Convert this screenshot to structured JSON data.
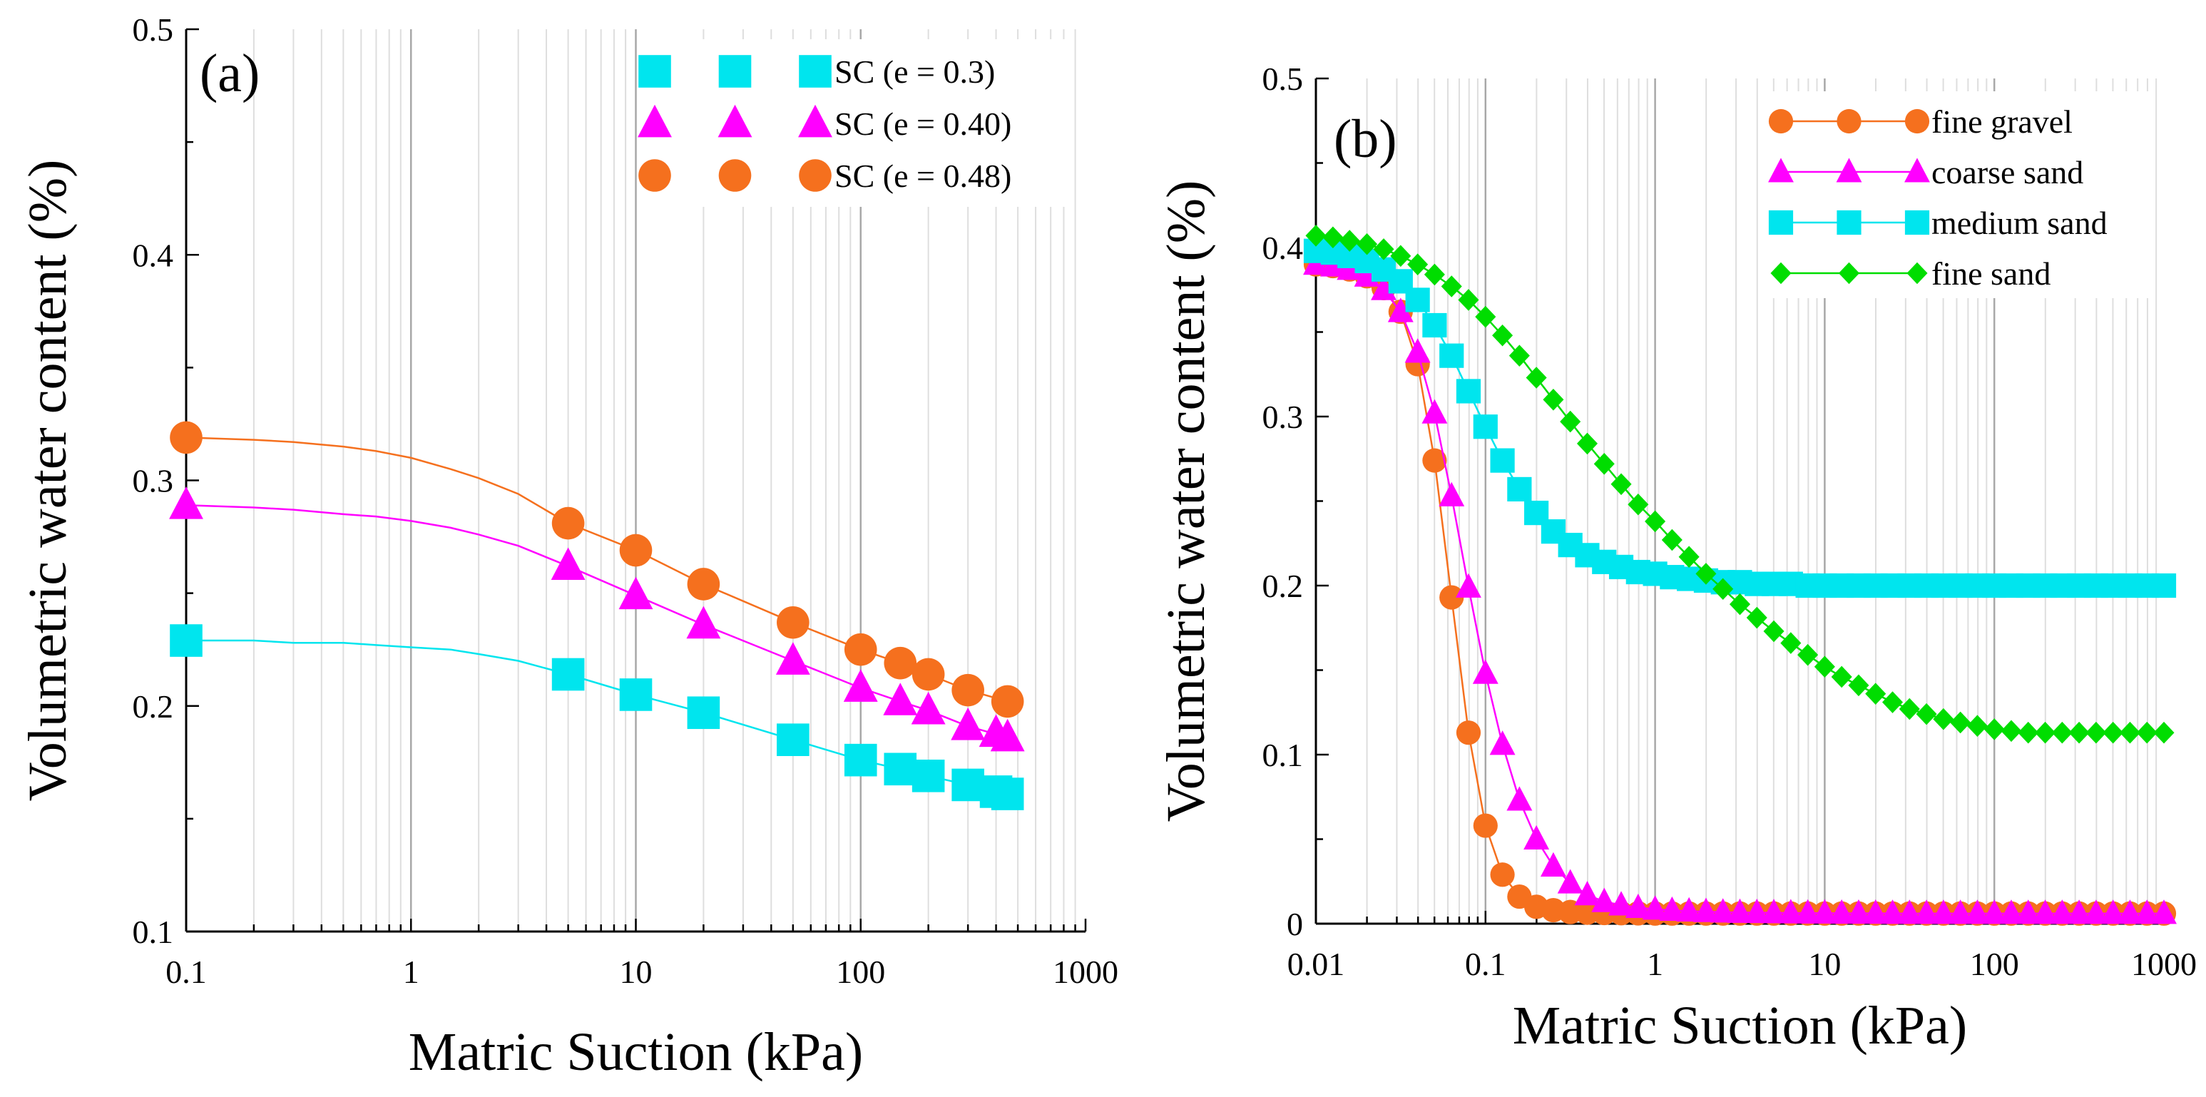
{
  "chart_data": [
    {
      "type": "line",
      "panel_label": "(a)",
      "xlabel": "Matric Suction (kPa)",
      "ylabel": "Volumetric water content (%)",
      "xscale": "log",
      "xlim": [
        0.1,
        1000
      ],
      "ylim": [
        0.1,
        0.5
      ],
      "xticks": [
        0.1,
        1,
        10,
        100,
        1000
      ],
      "xtick_labels": [
        "0.1",
        "1",
        "10",
        "100",
        "1000"
      ],
      "yticks": [
        0.1,
        0.2,
        0.3,
        0.4,
        0.5
      ],
      "ytick_labels": [
        "0.1",
        "0.2",
        "0.3",
        "0.4",
        "0.5"
      ],
      "legend_position": "top-right",
      "grid": "vertical log grid",
      "series": [
        {
          "name": "SC (e = 0.3)",
          "color": "#00e5ee",
          "marker": "square",
          "x": [
            0.1,
            5,
            10,
            20,
            50,
            100,
            150,
            200,
            300,
            400,
            450
          ],
          "y": [
            0.229,
            0.214,
            0.205,
            0.197,
            0.185,
            0.176,
            0.172,
            0.169,
            0.165,
            0.162,
            0.161
          ]
        },
        {
          "name": "SC (e = 0.40)",
          "color": "#ff00ff",
          "marker": "triangle",
          "x": [
            0.1,
            5,
            10,
            20,
            50,
            100,
            150,
            200,
            300,
            400,
            450
          ],
          "y": [
            0.289,
            0.262,
            0.249,
            0.236,
            0.22,
            0.208,
            0.202,
            0.198,
            0.191,
            0.188,
            0.186
          ]
        },
        {
          "name": "SC (e = 0.48)",
          "color": "#f5701e",
          "marker": "circle",
          "x": [
            0.1,
            5,
            10,
            20,
            50,
            100,
            150,
            200,
            300,
            450
          ],
          "y": [
            0.319,
            0.281,
            0.269,
            0.254,
            0.237,
            0.225,
            0.219,
            0.214,
            0.207,
            0.202
          ]
        }
      ],
      "curve_x": [
        0.1,
        0.2,
        0.3,
        0.5,
        0.7,
        1,
        1.5,
        2,
        3,
        5,
        10,
        20,
        50,
        100,
        150,
        200,
        300,
        450
      ],
      "curve_y": [
        [
          0.229,
          0.229,
          0.228,
          0.228,
          0.227,
          0.226,
          0.225,
          0.223,
          0.22,
          0.214,
          0.205,
          0.197,
          0.185,
          0.176,
          0.172,
          0.169,
          0.165,
          0.161
        ],
        [
          0.289,
          0.288,
          0.287,
          0.285,
          0.284,
          0.282,
          0.279,
          0.276,
          0.271,
          0.262,
          0.249,
          0.236,
          0.22,
          0.208,
          0.202,
          0.198,
          0.191,
          0.186
        ],
        [
          0.319,
          0.318,
          0.317,
          0.315,
          0.313,
          0.31,
          0.305,
          0.301,
          0.294,
          0.281,
          0.269,
          0.254,
          0.237,
          0.225,
          0.219,
          0.214,
          0.207,
          0.202
        ]
      ]
    },
    {
      "type": "line",
      "panel_label": "(b)",
      "xlabel": "Matric Suction (kPa)",
      "ylabel": "Volumetric water content (%)",
      "xscale": "log",
      "xlim": [
        0.01,
        1000
      ],
      "ylim": [
        0,
        0.5
      ],
      "xticks": [
        0.01,
        0.1,
        1,
        10,
        100,
        1000
      ],
      "xtick_labels": [
        "0.01",
        "0.1",
        "1",
        "10",
        "100",
        "1000"
      ],
      "yticks": [
        0,
        0.1,
        0.2,
        0.3,
        0.4,
        0.5
      ],
      "ytick_labels": [
        "0",
        "0.1",
        "0.2",
        "0.3",
        "0.4",
        "0.5"
      ],
      "legend_position": "top-right",
      "grid": "vertical log grid",
      "series": [
        {
          "name": "fine gravel",
          "color": "#f5701e",
          "marker": "circle",
          "x": [
            0.01,
            0.0126,
            0.0158,
            0.02,
            0.0251,
            0.0316,
            0.0398,
            0.0501,
            0.0631,
            0.0794,
            0.1,
            0.1259,
            0.1585,
            0.1995,
            0.2512,
            0.3162,
            0.3981,
            0.5012,
            0.631,
            0.7943,
            1,
            1.2589,
            1.5849,
            1.9953,
            2.5119,
            3.1623,
            3.9811,
            5.0119,
            6.3096,
            7.9433,
            10,
            12.589,
            15.849,
            19.953,
            25.119,
            31.623,
            39.811,
            50.119,
            63.096,
            79.433,
            100,
            125.89,
            158.49,
            199.53,
            251.19,
            316.23,
            398.11,
            501.19,
            630.96,
            794.33,
            1000
          ],
          "y": [
            0.39,
            0.389,
            0.387,
            0.383,
            0.376,
            0.362,
            0.331,
            0.274,
            0.193,
            0.113,
            0.058,
            0.029,
            0.016,
            0.01,
            0.008,
            0.0069,
            0.0065,
            0.0063,
            0.0062,
            0.0061,
            0.006,
            0.006,
            0.006,
            0.006,
            0.006,
            0.006,
            0.006,
            0.006,
            0.006,
            0.006,
            0.006,
            0.006,
            0.006,
            0.006,
            0.006,
            0.006,
            0.006,
            0.006,
            0.006,
            0.006,
            0.006,
            0.006,
            0.006,
            0.006,
            0.006,
            0.006,
            0.006,
            0.006,
            0.006,
            0.006,
            0.006
          ]
        },
        {
          "name": "coarse sand",
          "color": "#ff00ff",
          "marker": "triangle",
          "x": [
            0.01,
            0.0126,
            0.0158,
            0.02,
            0.0251,
            0.0316,
            0.0398,
            0.0501,
            0.0631,
            0.0794,
            0.1,
            0.1259,
            0.1585,
            0.1995,
            0.2512,
            0.3162,
            0.3981,
            0.5012,
            0.631,
            0.7943,
            1,
            1.2589,
            1.5849,
            1.9953,
            2.5119,
            3.1623,
            3.9811,
            5.0119,
            6.3096,
            7.9433,
            10,
            12.589,
            15.849,
            19.953,
            25.119,
            31.623,
            39.811,
            50.119,
            63.096,
            79.433,
            100,
            125.89,
            158.49,
            199.53,
            251.19,
            316.23,
            398.11,
            501.19,
            630.96,
            794.33,
            1000
          ],
          "y": [
            0.39,
            0.389,
            0.387,
            0.383,
            0.375,
            0.362,
            0.338,
            0.302,
            0.253,
            0.199,
            0.148,
            0.106,
            0.073,
            0.05,
            0.034,
            0.024,
            0.017,
            0.013,
            0.011,
            0.0095,
            0.0085,
            0.0078,
            0.0074,
            0.0071,
            0.0068,
            0.0066,
            0.0065,
            0.0064,
            0.0063,
            0.0062,
            0.0062,
            0.0061,
            0.0061,
            0.0061,
            0.006,
            0.006,
            0.006,
            0.006,
            0.006,
            0.006,
            0.006,
            0.006,
            0.006,
            0.006,
            0.006,
            0.006,
            0.006,
            0.006,
            0.006,
            0.006,
            0.006
          ]
        },
        {
          "name": "medium sand",
          "color": "#00e5ee",
          "marker": "square",
          "x": [
            0.01,
            0.0126,
            0.0158,
            0.02,
            0.0251,
            0.0316,
            0.0398,
            0.0501,
            0.0631,
            0.0794,
            0.1,
            0.1259,
            0.1585,
            0.1995,
            0.2512,
            0.3162,
            0.3981,
            0.5012,
            0.631,
            0.7943,
            1,
            1.2589,
            1.5849,
            1.9953,
            2.5119,
            3.1623,
            3.9811,
            5.0119,
            6.3096,
            7.9433,
            10,
            12.589,
            15.849,
            19.953,
            25.119,
            31.623,
            39.811,
            50.119,
            63.096,
            79.433,
            100,
            125.89,
            158.49,
            199.53,
            251.19,
            316.23,
            398.11,
            501.19,
            630.96,
            794.33,
            1000
          ],
          "y": [
            0.398,
            0.397,
            0.395,
            0.392,
            0.387,
            0.38,
            0.369,
            0.354,
            0.336,
            0.315,
            0.294,
            0.274,
            0.257,
            0.243,
            0.232,
            0.224,
            0.218,
            0.214,
            0.211,
            0.208,
            0.207,
            0.205,
            0.204,
            0.203,
            0.202,
            0.202,
            0.201,
            0.201,
            0.201,
            0.2,
            0.2,
            0.2,
            0.2,
            0.2,
            0.2,
            0.2,
            0.2,
            0.2,
            0.2,
            0.2,
            0.2,
            0.2,
            0.2,
            0.2,
            0.2,
            0.2,
            0.2,
            0.2,
            0.2,
            0.2,
            0.2
          ]
        },
        {
          "name": "fine sand",
          "color": "#00dd00",
          "marker": "diamond",
          "x": [
            0.01,
            0.0126,
            0.0158,
            0.02,
            0.0251,
            0.0316,
            0.0398,
            0.0501,
            0.0631,
            0.0794,
            0.1,
            0.1259,
            0.1585,
            0.1995,
            0.2512,
            0.3162,
            0.3981,
            0.5012,
            0.631,
            0.7943,
            1,
            1.2589,
            1.5849,
            1.9953,
            2.5119,
            3.1623,
            3.9811,
            5.0119,
            6.3096,
            7.9433,
            10,
            12.589,
            15.849,
            19.953,
            25.119,
            31.623,
            39.811,
            50.119,
            63.096,
            79.433,
            100,
            125.89,
            158.49,
            199.53,
            251.19,
            316.23,
            398.11,
            501.19,
            630.96,
            794.33,
            1000
          ],
          "y": [
            0.407,
            0.406,
            0.404,
            0.402,
            0.399,
            0.395,
            0.39,
            0.384,
            0.377,
            0.369,
            0.359,
            0.348,
            0.336,
            0.323,
            0.31,
            0.297,
            0.284,
            0.272,
            0.26,
            0.248,
            0.238,
            0.227,
            0.217,
            0.207,
            0.198,
            0.189,
            0.181,
            0.173,
            0.166,
            0.159,
            0.152,
            0.146,
            0.141,
            0.136,
            0.131,
            0.127,
            0.124,
            0.121,
            0.119,
            0.117,
            0.115,
            0.114,
            0.113,
            0.113,
            0.113,
            0.113,
            0.113,
            0.113,
            0.113,
            0.113,
            0.113
          ]
        }
      ]
    }
  ]
}
